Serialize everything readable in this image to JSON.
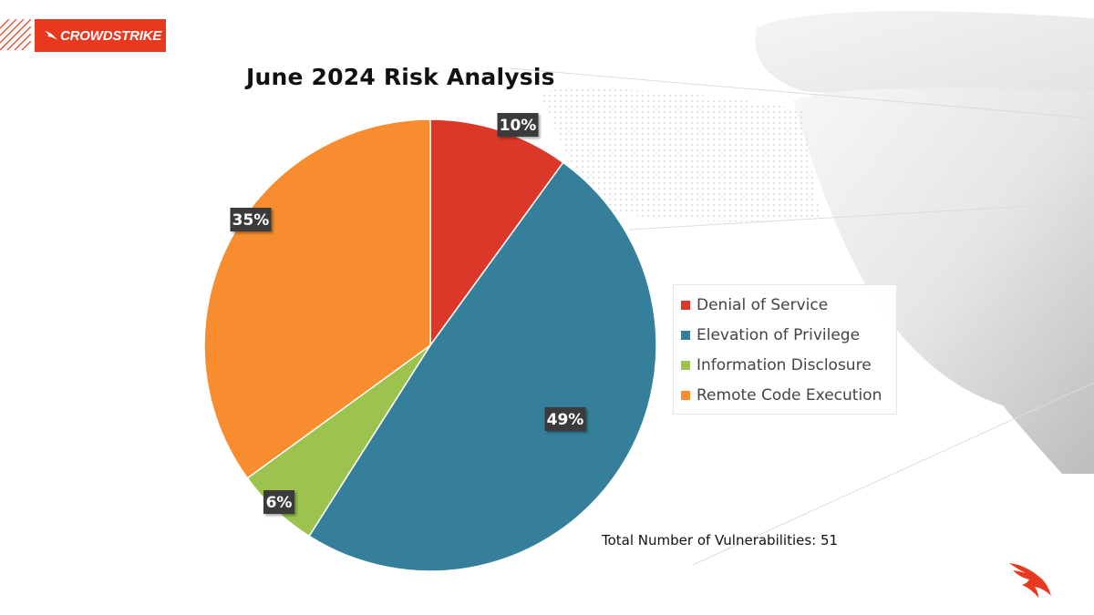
{
  "brand": {
    "logo_text": "CROWDSTRIKE",
    "accent_color": "#e8381f",
    "logo_icon": "falcon-icon"
  },
  "chart_data": {
    "type": "pie",
    "title": "June 2024 Risk Analysis",
    "categories": [
      "Denial of Service",
      "Elevation of Privilege",
      "Information Disclosure",
      "Remote Code Execution"
    ],
    "values": [
      10,
      49,
      6,
      35
    ],
    "labels": [
      "10%",
      "49%",
      "6%",
      "35%"
    ],
    "colors": [
      "#dc3829",
      "#357f9a",
      "#9bc34d",
      "#f78d2e"
    ],
    "legend_position": "right",
    "start_angle_deg": 0,
    "direction": "clockwise"
  },
  "footer": {
    "total_text": "Total Number of Vulnerabilities: 51"
  }
}
